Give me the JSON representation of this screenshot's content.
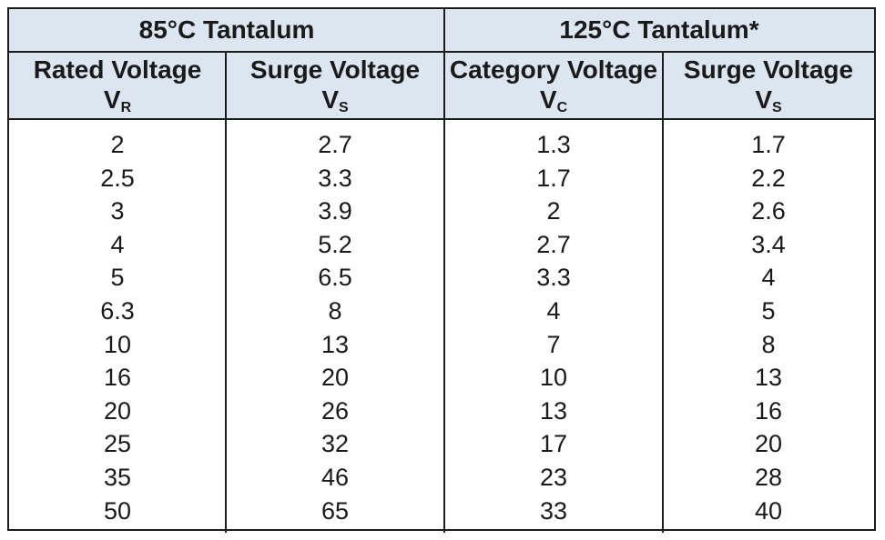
{
  "groups": {
    "t85": "85°C Tantalum",
    "t125": "125°C Tantalum*"
  },
  "columns": {
    "rated": {
      "name": "Rated Voltage",
      "symbol": "V",
      "sub": "R"
    },
    "surge85": {
      "name": "Surge Voltage",
      "symbol": "V",
      "sub": "S"
    },
    "category": {
      "name": "Category Voltage",
      "symbol": "V",
      "sub": "C"
    },
    "surge125": {
      "name": "Surge Voltage",
      "symbol": "V",
      "sub": "S"
    }
  },
  "rows": [
    [
      "2",
      "2.7",
      "1.3",
      "1.7"
    ],
    [
      "2.5",
      "3.3",
      "1.7",
      "2.2"
    ],
    [
      "3",
      "3.9",
      "2",
      "2.6"
    ],
    [
      "4",
      "5.2",
      "2.7",
      "3.4"
    ],
    [
      "5",
      "6.5",
      "3.3",
      "4"
    ],
    [
      "6.3",
      "8",
      "4",
      "5"
    ],
    [
      "10",
      "13",
      "7",
      "8"
    ],
    [
      "16",
      "20",
      "10",
      "13"
    ],
    [
      "20",
      "26",
      "13",
      "16"
    ],
    [
      "25",
      "32",
      "17",
      "20"
    ],
    [
      "35",
      "46",
      "23",
      "28"
    ],
    [
      "50",
      "65",
      "33",
      "40"
    ]
  ],
  "colors": {
    "header_bg": "#dbe6f0",
    "rule": "#1c1c1c"
  }
}
